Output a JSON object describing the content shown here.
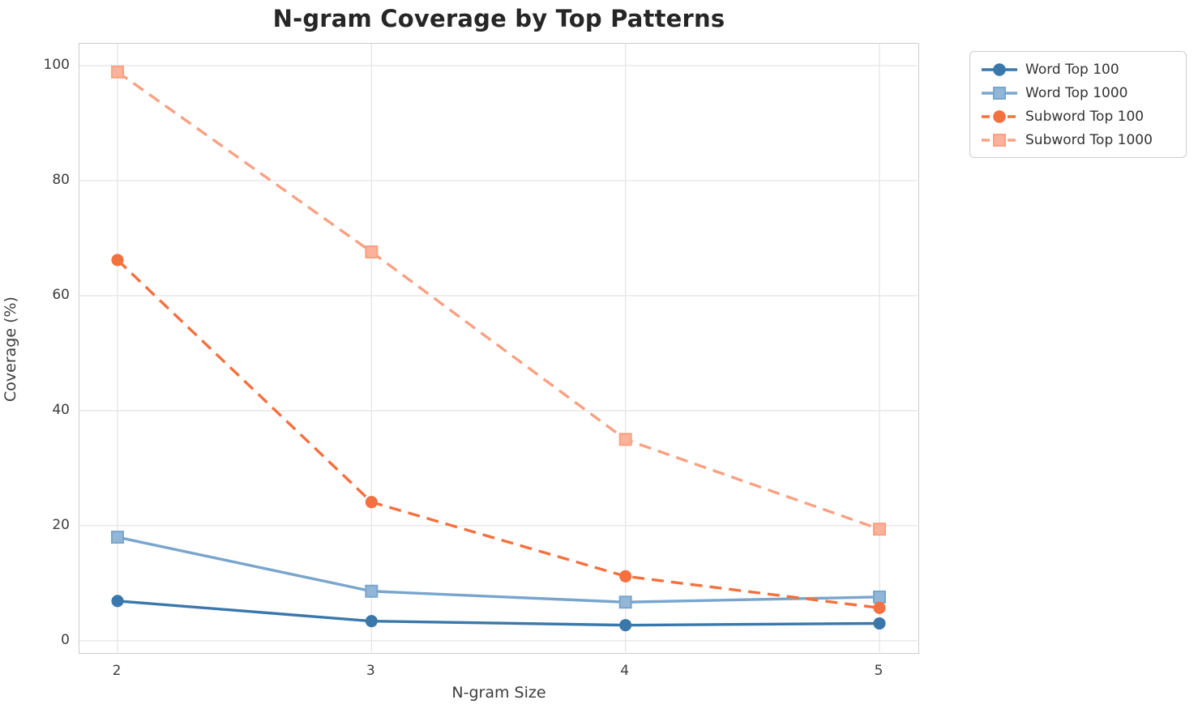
{
  "title": "N-gram Coverage by Top Patterns",
  "axes": {
    "xlabel": "N-gram Size",
    "ylabel": "Coverage (%)",
    "xticks": [
      2,
      3,
      4,
      5
    ],
    "yticks": [
      0,
      20,
      40,
      60,
      80,
      100
    ]
  },
  "style": {
    "grid_color": "#e7e7e7",
    "spine_color": "#cdcdcd",
    "title_color": "#262626",
    "tick_color": "#3d3d3d",
    "legend_border_color": "#cccccc"
  },
  "chart_data": {
    "type": "line",
    "title": "N-gram Coverage by Top Patterns",
    "xlabel": "N-gram Size",
    "ylabel": "Coverage (%)",
    "x": [
      2,
      3,
      4,
      5
    ],
    "series": [
      {
        "name": "Word Top 100",
        "values": [
          6.9,
          3.4,
          2.7,
          3.0
        ],
        "color": "#3a78ab",
        "marker_fill": "#3a78ab",
        "marker": "circle",
        "dash": "solid"
      },
      {
        "name": "Word Top 1000",
        "values": [
          18.0,
          8.6,
          6.7,
          7.6
        ],
        "color": "#79a5cd",
        "marker_fill": "#92b6d8",
        "marker": "square",
        "dash": "solid"
      },
      {
        "name": "Subword Top 100",
        "values": [
          66.2,
          24.1,
          11.2,
          5.7
        ],
        "color": "#f4703f",
        "marker_fill": "#f4703f",
        "marker": "circle",
        "dash": "dashed"
      },
      {
        "name": "Subword Top 1000",
        "values": [
          98.9,
          67.6,
          35.0,
          19.4
        ],
        "color": "#f9a183",
        "marker_fill": "#fbb29a",
        "marker": "square",
        "dash": "dashed"
      }
    ],
    "xlim": [
      1.85,
      5.15
    ],
    "ylim": [
      -2.0,
      103.8
    ],
    "grid": true,
    "legend_position": "outside-upper-right",
    "legend_entries": [
      "Word Top 100",
      "Word Top 1000",
      "Subword Top 100",
      "Subword Top 1000"
    ]
  }
}
